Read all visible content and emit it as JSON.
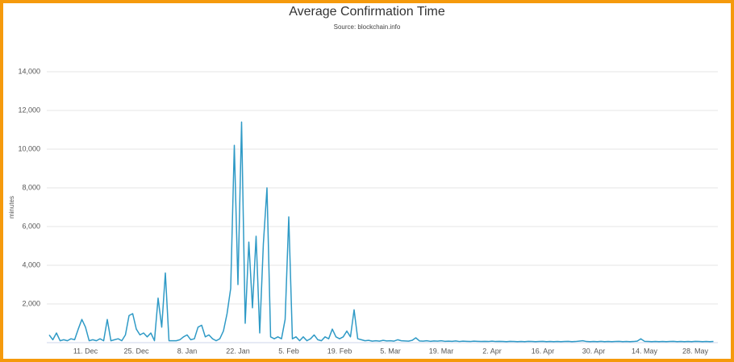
{
  "chart_data": {
    "type": "line",
    "title": "Average Confirmation Time",
    "subtitle": "Source: blockchain.info",
    "y_label": "minutes",
    "categories": [
      null,
      null,
      null,
      null,
      null,
      null,
      null,
      null,
      null,
      null,
      "11. Dec",
      null,
      null,
      null,
      null,
      null,
      null,
      null,
      null,
      null,
      null,
      null,
      null,
      null,
      "25. Dec",
      null,
      null,
      null,
      null,
      null,
      null,
      null,
      null,
      null,
      null,
      null,
      null,
      null,
      "8. Jan",
      null,
      null,
      null,
      null,
      null,
      null,
      null,
      null,
      null,
      null,
      null,
      null,
      null,
      "22. Jan",
      null,
      null,
      null,
      null,
      null,
      null,
      null,
      null,
      null,
      null,
      null,
      null,
      null,
      "5. Feb",
      null,
      null,
      null,
      null,
      null,
      null,
      null,
      null,
      null,
      null,
      null,
      null,
      null,
      "19. Feb",
      null,
      null,
      null,
      null,
      null,
      null,
      null,
      null,
      null,
      null,
      null,
      null,
      null,
      "5. Mar",
      null,
      null,
      null,
      null,
      null,
      null,
      null,
      null,
      null,
      null,
      null,
      null,
      null,
      "19. Mar",
      null,
      null,
      null,
      null,
      null,
      null,
      null,
      null,
      null,
      null,
      null,
      null,
      null,
      "2. Apr",
      null,
      null,
      null,
      null,
      null,
      null,
      null,
      null,
      null,
      null,
      null,
      null,
      null,
      "16. Apr",
      null,
      null,
      null,
      null,
      null,
      null,
      null,
      null,
      null,
      null,
      null,
      null,
      null,
      "30. Apr",
      null,
      null,
      null,
      null,
      null,
      null,
      null,
      null,
      null,
      null,
      null,
      null,
      null,
      "14. May",
      null,
      null,
      null,
      null,
      null,
      null,
      null,
      null,
      null,
      null,
      null,
      null,
      null,
      "28. May",
      null,
      null,
      null,
      null,
      null
    ],
    "series": [
      {
        "name": "Average Confirmation Time",
        "color": "#2f9ac6",
        "values": [
          400,
          150,
          500,
          100,
          150,
          100,
          200,
          150,
          700,
          1200,
          800,
          100,
          150,
          100,
          200,
          100,
          1200,
          100,
          150,
          200,
          100,
          400,
          1400,
          1500,
          700,
          400,
          500,
          300,
          500,
          100,
          2300,
          800,
          3600,
          100,
          100,
          100,
          150,
          300,
          400,
          150,
          200,
          800,
          900,
          300,
          400,
          200,
          100,
          200,
          600,
          1500,
          2800,
          10200,
          3000,
          11400,
          1000,
          5200,
          1800,
          5500,
          500,
          5100,
          8000,
          300,
          200,
          300,
          200,
          1200,
          6500,
          200,
          300,
          100,
          300,
          100,
          200,
          400,
          150,
          100,
          300,
          200,
          700,
          300,
          200,
          300,
          600,
          300,
          1700,
          200,
          150,
          100,
          120,
          80,
          100,
          80,
          120,
          90,
          100,
          80,
          150,
          100,
          90,
          80,
          120,
          250,
          90,
          80,
          100,
          70,
          90,
          80,
          100,
          70,
          80,
          70,
          90,
          60,
          80,
          70,
          60,
          80,
          70,
          60,
          70,
          60,
          80,
          60,
          70,
          60,
          50,
          70,
          60,
          50,
          60,
          50,
          70,
          60,
          50,
          60,
          70,
          50,
          60,
          50,
          60,
          50,
          60,
          70,
          50,
          60,
          80,
          100,
          60,
          50,
          60,
          50,
          70,
          50,
          60,
          50,
          60,
          70,
          50,
          60,
          50,
          60,
          80,
          200,
          70,
          60,
          50,
          60,
          50,
          60,
          50,
          60,
          70,
          50,
          60,
          50,
          60,
          50,
          70,
          60,
          50,
          60,
          50,
          60
        ]
      }
    ],
    "ylim": [
      0,
      14000
    ],
    "yticks": [
      {
        "value": 2000,
        "label": "2,000"
      },
      {
        "value": 4000,
        "label": "4,000"
      },
      {
        "value": 6000,
        "label": "6,000"
      },
      {
        "value": 8000,
        "label": "8,000"
      },
      {
        "value": 10000,
        "label": "10,000"
      },
      {
        "value": 12000,
        "label": "12,000"
      },
      {
        "value": 14000,
        "label": "14,000"
      }
    ],
    "grid": true
  }
}
